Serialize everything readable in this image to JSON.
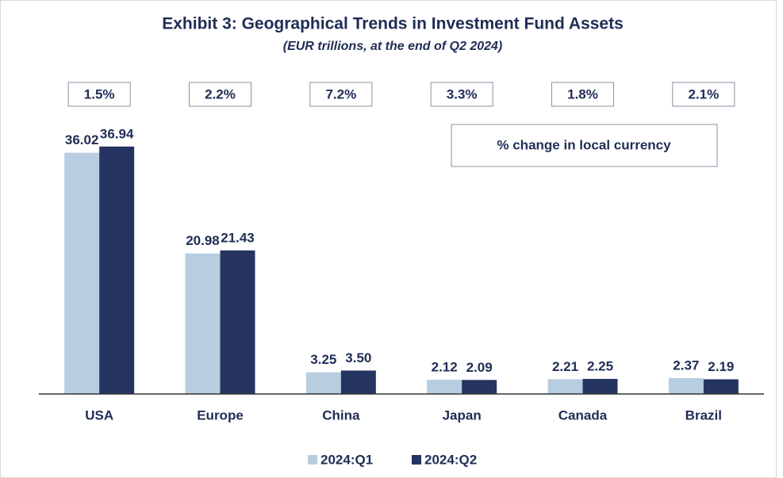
{
  "chart_data": {
    "type": "bar",
    "title": "Exhibit 3: Geographical Trends in Investment Fund Assets",
    "subtitle": "(EUR trillions, at the end of Q2 2024)",
    "annotation": "% change in local currency",
    "categories": [
      "USA",
      "Europe",
      "China",
      "Japan",
      "Canada",
      "Brazil"
    ],
    "pct_change": [
      1.5,
      2.2,
      7.2,
      3.3,
      1.8,
      2.1
    ],
    "pct_change_labels": [
      "1.5%",
      "2.2%",
      "7.2%",
      "3.3%",
      "1.8%",
      "2.1%"
    ],
    "series": [
      {
        "name": "2024:Q1",
        "color": "#b8cde0",
        "values": [
          36.02,
          20.98,
          3.25,
          2.12,
          2.21,
          2.37
        ],
        "value_labels": [
          "36.02",
          "20.98",
          "3.25",
          "2.12",
          "2.21",
          "2.37"
        ]
      },
      {
        "name": "2024:Q2",
        "color": "#253461",
        "values": [
          36.94,
          21.43,
          3.5,
          2.09,
          2.25,
          2.19
        ],
        "value_labels": [
          "36.94",
          "21.43",
          "3.50",
          "2.09",
          "2.25",
          "2.19"
        ]
      }
    ],
    "ylim": [
      0,
      40
    ]
  }
}
